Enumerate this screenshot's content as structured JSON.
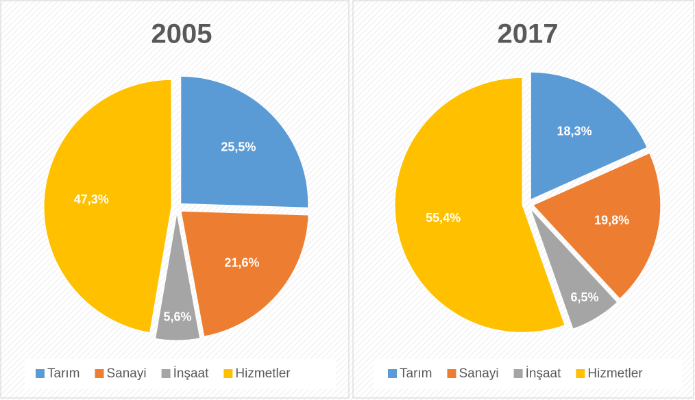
{
  "chart_data": [
    {
      "type": "pie",
      "title": "2005",
      "categories": [
        "Tarım",
        "Sanayi",
        "İnşaat",
        "Hizmetler"
      ],
      "values": [
        25.5,
        21.6,
        5.6,
        47.3
      ],
      "value_labels": [
        "25,5%",
        "21,6%",
        "5,6%",
        "47,3%"
      ],
      "colors": [
        "#5b9bd5",
        "#ed7d31",
        "#a5a5a5",
        "#ffc000"
      ],
      "legend": "bottom"
    },
    {
      "type": "pie",
      "title": "2017",
      "categories": [
        "Tarım",
        "Sanayi",
        "İnşaat",
        "Hizmetler"
      ],
      "values": [
        18.3,
        19.8,
        6.5,
        55.4
      ],
      "value_labels": [
        "18,3%",
        "19,8%",
        "6,5%",
        "55,4%"
      ],
      "colors": [
        "#5b9bd5",
        "#ed7d31",
        "#a5a5a5",
        "#ffc000"
      ],
      "legend": "bottom"
    }
  ]
}
